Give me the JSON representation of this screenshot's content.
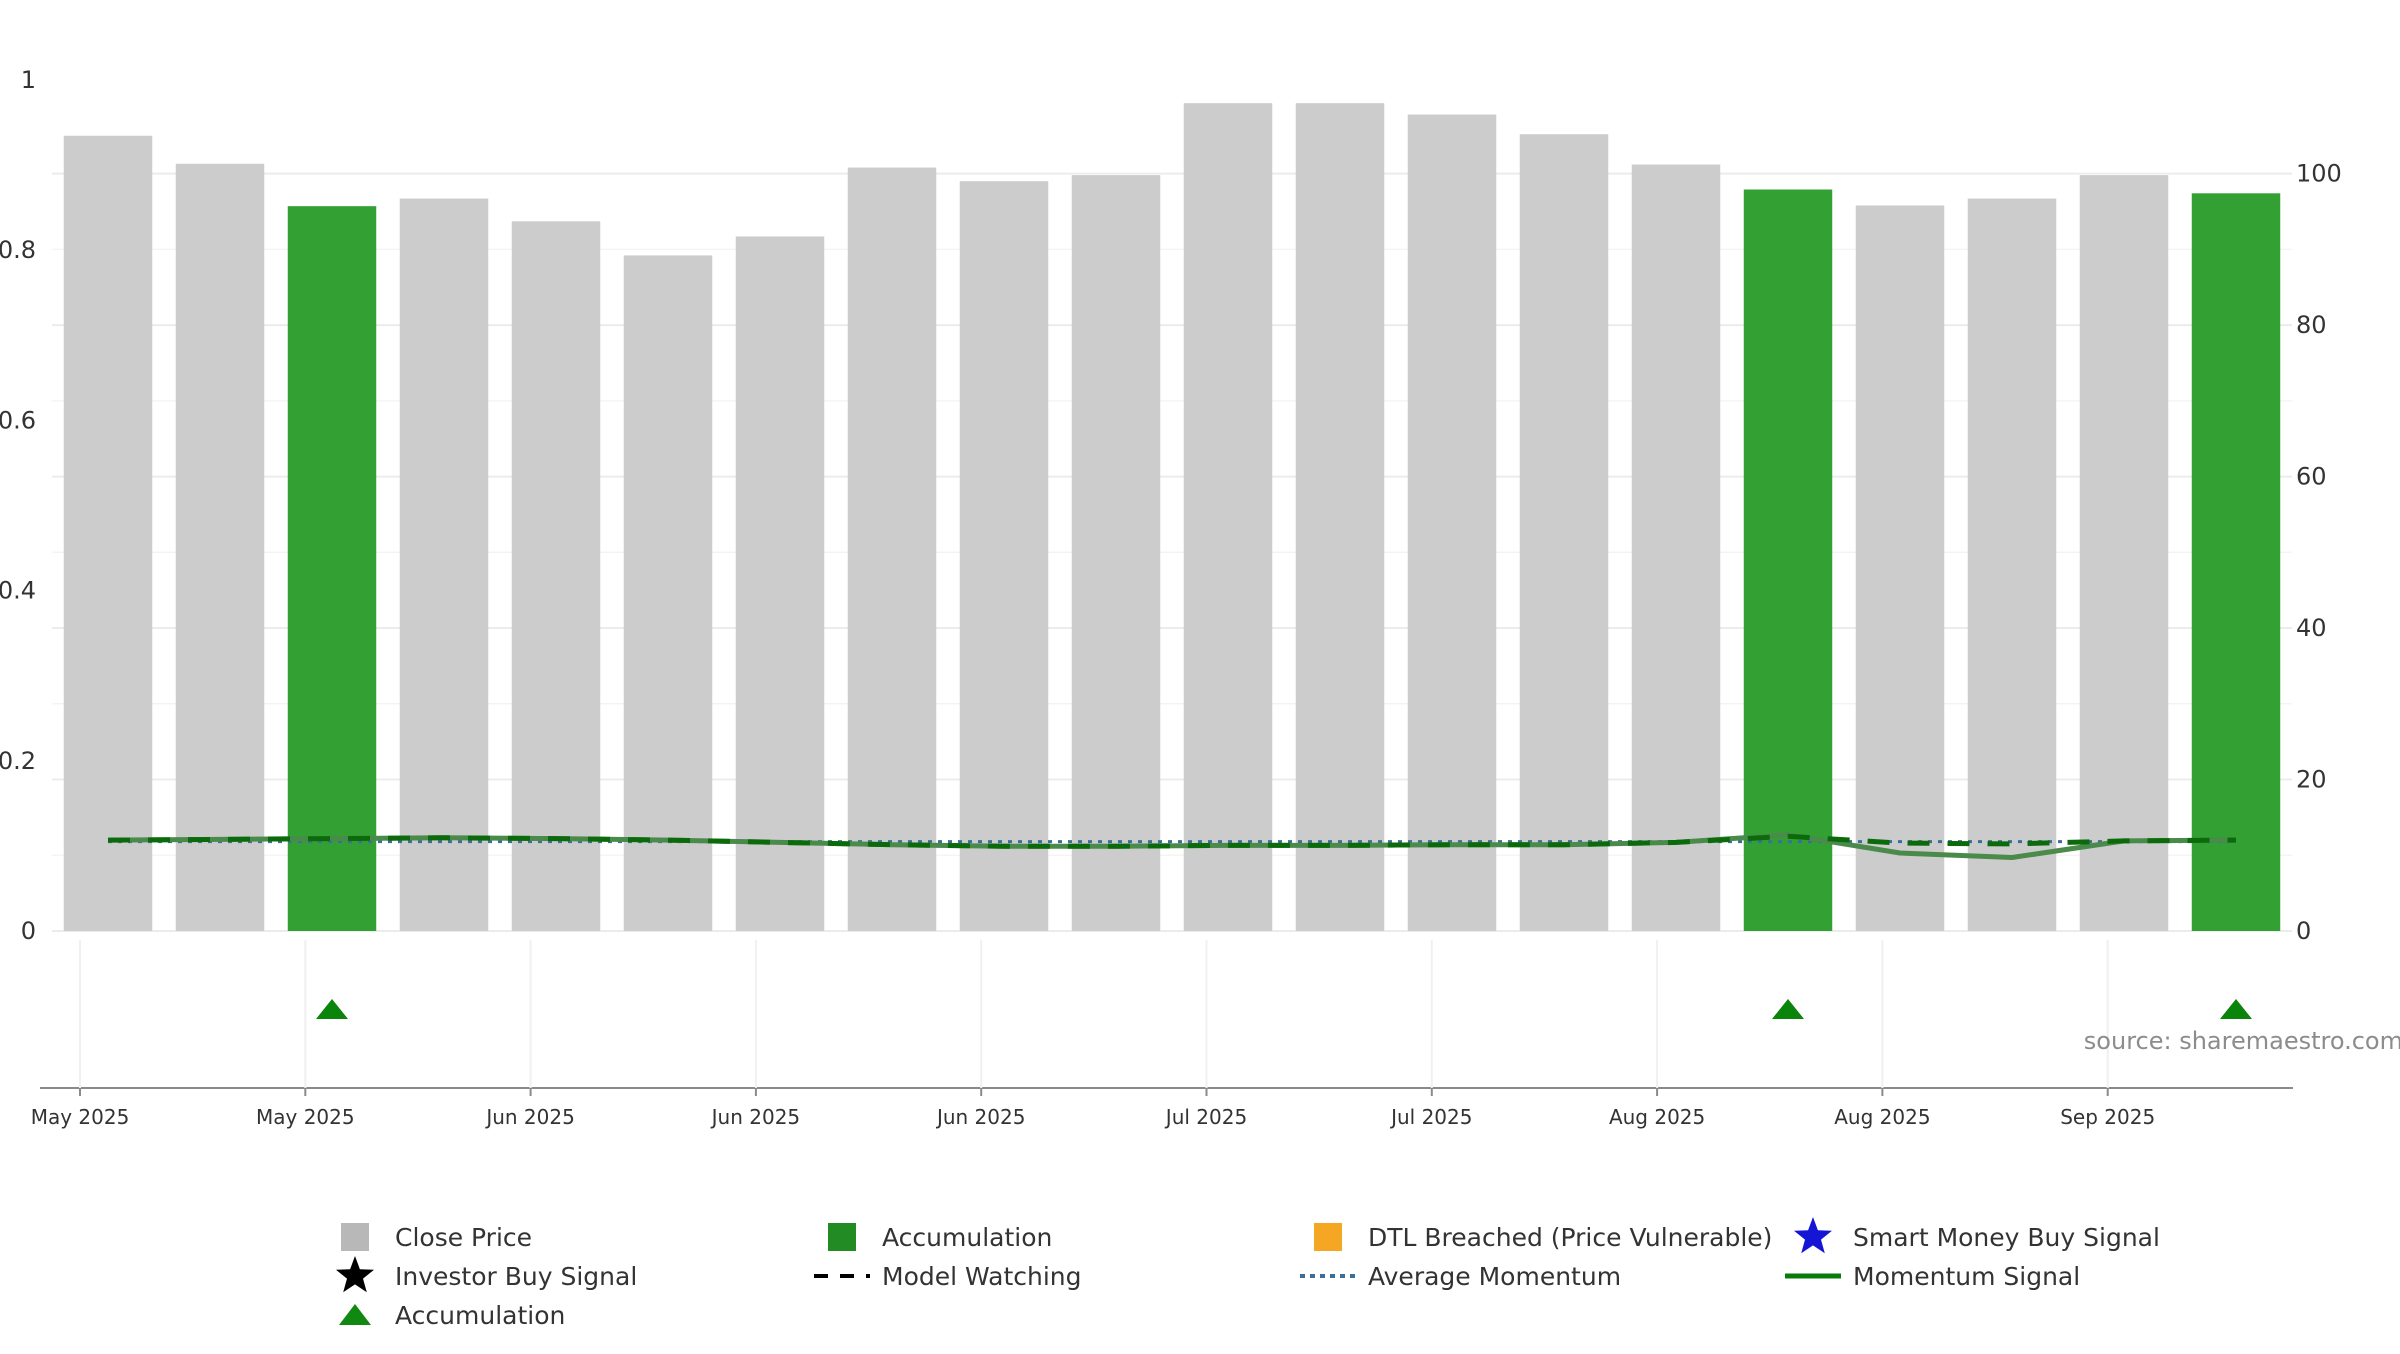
{
  "chart_data": {
    "type": "bar",
    "title": "",
    "source": "source: sharemaestro.com",
    "left_axis": {
      "range": [
        0,
        1
      ],
      "ticks": [
        0,
        0.2,
        0.4,
        0.6,
        0.8,
        1
      ],
      "tick_labels": [
        "0",
        "0.2",
        "0.4",
        "0.6",
        "0.8",
        "1"
      ]
    },
    "right_axis": {
      "range": [
        0,
        115
      ],
      "ticks": [
        0,
        20,
        40,
        60,
        80,
        100
      ],
      "tick_labels": [
        "0",
        "20",
        "40",
        "60",
        "80",
        "100"
      ]
    },
    "x_tick_labels": [
      "May 2025",
      "May 2025",
      "Jun 2025",
      "Jun 2025",
      "Jun 2025",
      "Jul 2025",
      "Jul 2025",
      "Aug 2025",
      "Aug 2025",
      "Sep 2025"
    ],
    "close_price": [
      105,
      101.3,
      95.7,
      96.7,
      93.7,
      89.2,
      91.7,
      100.8,
      99,
      99.8,
      109.3,
      109.3,
      107.8,
      105.2,
      101.2,
      97.9,
      95.8,
      96.7,
      99.8,
      97.4
    ],
    "accumulation_bars": [
      false,
      false,
      true,
      false,
      false,
      false,
      false,
      false,
      false,
      false,
      false,
      false,
      false,
      false,
      false,
      true,
      false,
      false,
      false,
      true
    ],
    "momentum_signal": [
      12,
      12.1,
      12.2,
      12.3,
      12.2,
      12,
      11.7,
      11.4,
      11.2,
      11.2,
      11.3,
      11.3,
      11.4,
      11.4,
      11.7,
      12.7,
      10.3,
      9.7,
      11.9,
      12
    ],
    "model_watching": [
      12,
      12.1,
      12.2,
      12.3,
      12.2,
      12,
      11.7,
      11.4,
      11.2,
      11.2,
      11.3,
      11.3,
      11.4,
      11.4,
      11.7,
      12.5,
      11.6,
      11.5,
      11.9,
      12
    ],
    "average_momentum": [
      11.8,
      11.8,
      11.8,
      11.8,
      11.8,
      11.8,
      11.8,
      11.8,
      11.8,
      11.8,
      11.8,
      11.8,
      11.8,
      11.8,
      11.8,
      11.8,
      11.8,
      11.8,
      11.8,
      11.8
    ],
    "accumulation_markers": [
      2,
      15,
      19
    ],
    "legend": [
      {
        "label": "Close Price",
        "symbol": "square",
        "color": "#b8b8b8"
      },
      {
        "label": "Accumulation",
        "symbol": "square",
        "color": "#238b23"
      },
      {
        "label": "DTL Breached (Price Vulnerable)",
        "symbol": "square",
        "color": "#f5a623"
      },
      {
        "label": "Smart Money Buy Signal",
        "symbol": "star",
        "color": "#1515d6"
      },
      {
        "label": "Investor Buy Signal",
        "symbol": "star",
        "color": "#000000"
      },
      {
        "label": "Model Watching",
        "symbol": "dash",
        "color": "#000000"
      },
      {
        "label": "Average Momentum",
        "symbol": "dot",
        "color": "#3a6f9c"
      },
      {
        "label": "Momentum Signal",
        "symbol": "line",
        "color": "#0a7a0a"
      },
      {
        "label": "Accumulation",
        "symbol": "triangle",
        "color": "#118811"
      }
    ],
    "colors": {
      "close_bar": "#cccccc",
      "accumulation_bar": "#33a033",
      "momentum": "#4a8a4a",
      "watching": "#0b6b0b",
      "average": "#3a6f9c",
      "marker": "#0b840b",
      "axis_text": "#333333",
      "source_text": "#8c8c8c"
    }
  }
}
